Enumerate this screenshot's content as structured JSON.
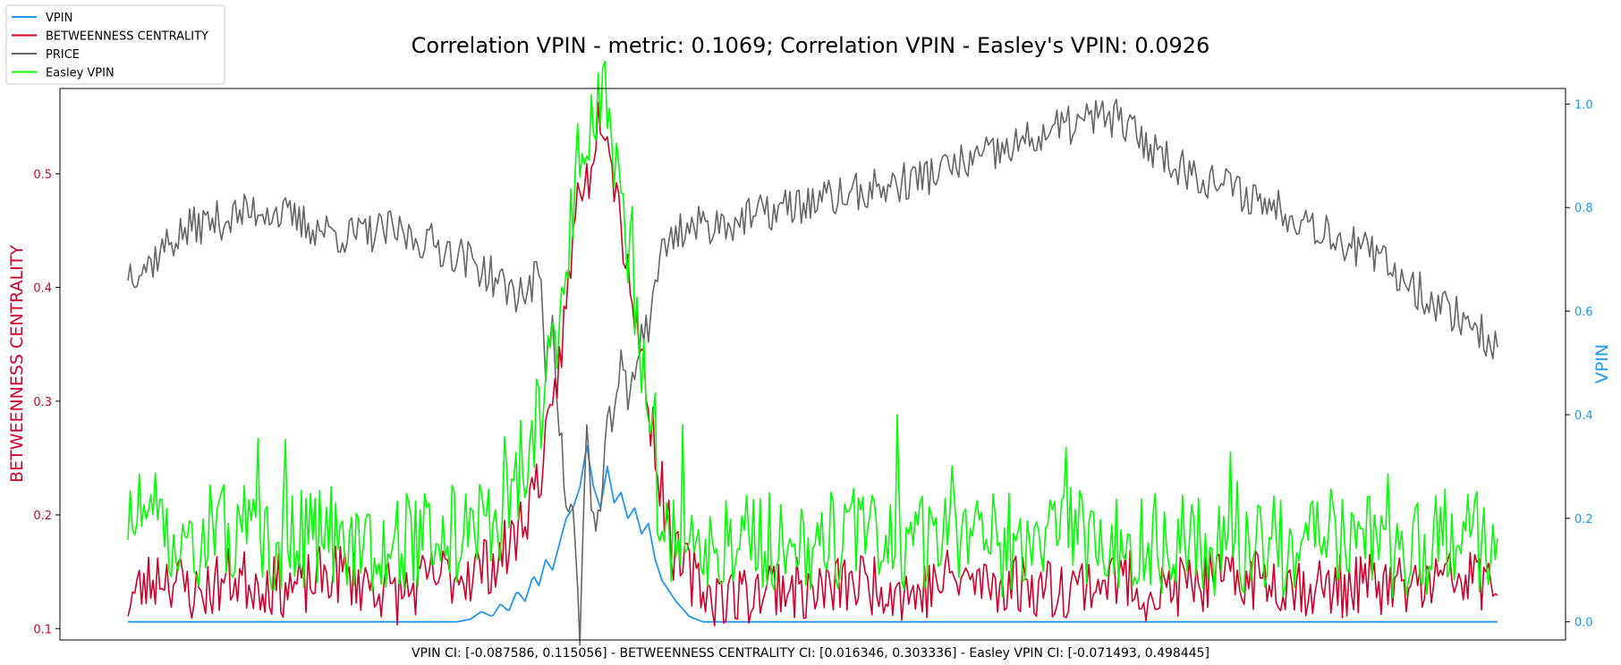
{
  "chart_data": {
    "type": "line",
    "title": "Correlation VPIN - metric: 0.1069; Correlation VPIN - Easley's VPIN: 0.0926",
    "footer": "VPIN CI: [-0.087586, 0.115056] - BETWEENNESS CENTRALITY CI: [0.016346, 0.303336] - Easley VPIN CI: [-0.071493, 0.498445]",
    "left_axis": {
      "label": "BETWEENNESS CENTRALITY",
      "color": "#d1002a",
      "ylim": [
        0.09,
        0.575
      ],
      "ticks": [
        0.1,
        0.2,
        0.3,
        0.4,
        0.5
      ],
      "tick_labels": [
        "0.1",
        "0.2",
        "0.3",
        "0.4",
        "0.5"
      ]
    },
    "right_axis": {
      "label": "VPIN",
      "color": "#2196f3",
      "ylim": [
        -0.035,
        1.03
      ],
      "ticks": [
        0.0,
        0.2,
        0.4,
        0.6,
        0.8,
        1.0
      ],
      "tick_labels": [
        "0.0",
        "0.2",
        "0.4",
        "0.6",
        "0.8",
        "1.0"
      ]
    },
    "x_range": [
      0,
      1000
    ],
    "grid": false,
    "legend_position": "top-left",
    "series": [
      {
        "name": "VPIN",
        "axis": "right",
        "color": "#2196f3",
        "x": [
          0,
          230,
          240,
          250,
          258,
          266,
          272,
          278,
          284,
          290,
          296,
          300,
          305,
          310,
          316,
          320,
          325,
          330,
          335,
          340,
          345,
          350,
          355,
          360,
          365,
          370,
          375,
          380,
          385,
          390,
          400,
          410,
          420,
          1000
        ],
        "y": [
          0.0,
          0.0,
          0.0,
          0.005,
          0.02,
          0.01,
          0.035,
          0.02,
          0.06,
          0.04,
          0.09,
          0.07,
          0.12,
          0.1,
          0.16,
          0.2,
          0.22,
          0.26,
          0.34,
          0.26,
          0.22,
          0.3,
          0.23,
          0.25,
          0.2,
          0.22,
          0.17,
          0.19,
          0.12,
          0.08,
          0.04,
          0.01,
          0.0,
          0.0
        ]
      },
      {
        "name": "BETWEENNESS CENTRALITY",
        "axis": "left",
        "color": "#d1002a",
        "x": [
          0,
          25,
          50,
          75,
          100,
          125,
          150,
          175,
          200,
          225,
          250,
          270,
          280,
          290,
          300,
          310,
          315,
          320,
          325,
          330,
          335,
          340,
          345,
          350,
          355,
          360,
          365,
          370,
          375,
          380,
          385,
          390,
          395,
          400,
          425,
          450,
          475,
          500,
          525,
          550,
          575,
          600,
          625,
          650,
          675,
          700,
          725,
          750,
          775,
          800,
          825,
          850,
          875,
          900,
          925,
          950,
          975,
          1000
        ],
        "y": [
          0.125,
          0.15,
          0.13,
          0.145,
          0.14,
          0.135,
          0.15,
          0.14,
          0.13,
          0.145,
          0.15,
          0.16,
          0.175,
          0.2,
          0.235,
          0.28,
          0.34,
          0.38,
          0.44,
          0.5,
          0.49,
          0.53,
          0.56,
          0.55,
          0.5,
          0.46,
          0.42,
          0.38,
          0.34,
          0.3,
          0.26,
          0.22,
          0.19,
          0.16,
          0.13,
          0.13,
          0.14,
          0.13,
          0.14,
          0.14,
          0.13,
          0.145,
          0.14,
          0.14,
          0.135,
          0.14,
          0.145,
          0.13,
          0.14,
          0.14,
          0.145,
          0.14,
          0.135,
          0.14,
          0.135,
          0.14,
          0.145,
          0.14
        ]
      },
      {
        "name": "PRICE",
        "axis": "left",
        "color": "#666666",
        "x": [
          0,
          15,
          30,
          50,
          70,
          100,
          130,
          160,
          190,
          220,
          240,
          255,
          265,
          275,
          285,
          295,
          300,
          305,
          310,
          315,
          320,
          325,
          330,
          335,
          340,
          345,
          350,
          355,
          360,
          365,
          370,
          375,
          380,
          385,
          390,
          400,
          420,
          450,
          480,
          520,
          560,
          600,
          640,
          680,
          710,
          720,
          740,
          770,
          800,
          830,
          860,
          890,
          920,
          950,
          980,
          1000
        ],
        "y": [
          0.415,
          0.42,
          0.44,
          0.455,
          0.46,
          0.47,
          0.455,
          0.445,
          0.45,
          0.44,
          0.43,
          0.42,
          0.41,
          0.4,
          0.395,
          0.4,
          0.42,
          0.33,
          0.38,
          0.28,
          0.21,
          0.2,
          0.095,
          0.28,
          0.19,
          0.2,
          0.27,
          0.3,
          0.33,
          0.3,
          0.32,
          0.37,
          0.36,
          0.41,
          0.43,
          0.45,
          0.455,
          0.46,
          0.47,
          0.48,
          0.49,
          0.505,
          0.52,
          0.54,
          0.55,
          0.55,
          0.53,
          0.505,
          0.49,
          0.475,
          0.46,
          0.44,
          0.42,
          0.39,
          0.37,
          0.345
        ]
      },
      {
        "name": "Easley VPIN",
        "axis": "left",
        "color": "#00ff00",
        "x": [
          0,
          25,
          50,
          75,
          100,
          125,
          150,
          175,
          200,
          225,
          250,
          270,
          280,
          290,
          300,
          310,
          315,
          320,
          325,
          330,
          335,
          340,
          345,
          350,
          355,
          360,
          365,
          370,
          375,
          380,
          385,
          390,
          395,
          400,
          425,
          450,
          475,
          500,
          525,
          550,
          575,
          600,
          625,
          650,
          675,
          700,
          725,
          750,
          775,
          800,
          825,
          850,
          875,
          900,
          925,
          950,
          975,
          1000
        ],
        "y": [
          0.2,
          0.19,
          0.18,
          0.185,
          0.175,
          0.18,
          0.185,
          0.175,
          0.18,
          0.18,
          0.185,
          0.2,
          0.22,
          0.25,
          0.28,
          0.33,
          0.38,
          0.42,
          0.47,
          0.52,
          0.5,
          0.54,
          0.57,
          0.55,
          0.5,
          0.47,
          0.43,
          0.4,
          0.34,
          0.3,
          0.24,
          0.2,
          0.18,
          0.18,
          0.17,
          0.18,
          0.175,
          0.17,
          0.18,
          0.175,
          0.17,
          0.18,
          0.175,
          0.17,
          0.175,
          0.18,
          0.17,
          0.175,
          0.18,
          0.17,
          0.175,
          0.17,
          0.18,
          0.175,
          0.17,
          0.175,
          0.18,
          0.17
        ]
      }
    ]
  }
}
